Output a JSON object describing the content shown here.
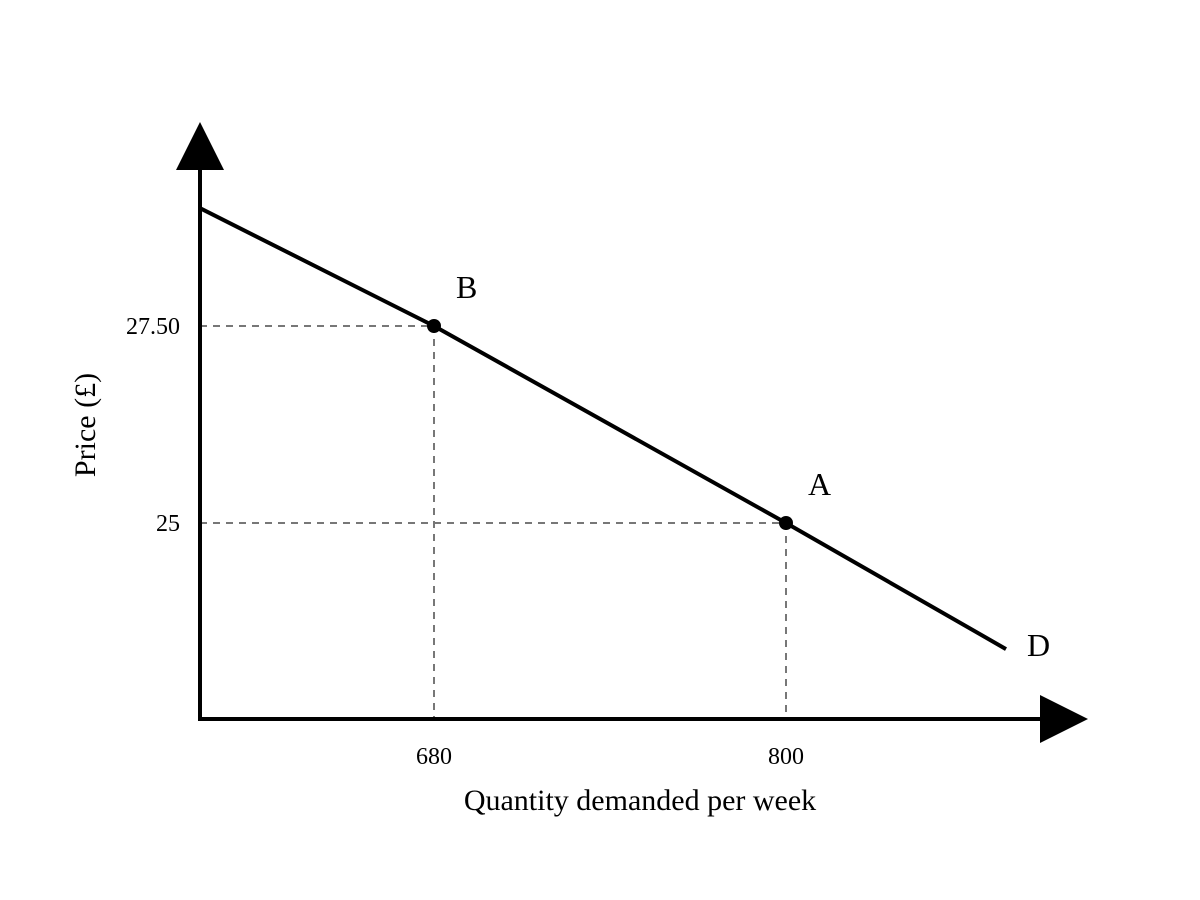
{
  "chart_data": {
    "type": "line",
    "title": "",
    "xlabel": "Quantity demanded per week",
    "ylabel": "Price (£)",
    "x_ticks": [
      {
        "value": 680,
        "label": "680"
      },
      {
        "value": 800,
        "label": "800"
      }
    ],
    "y_ticks": [
      {
        "value": 25,
        "label": "25"
      },
      {
        "value": 27.5,
        "label": "27.50"
      }
    ],
    "series": [
      {
        "name": "D",
        "color": "#000000",
        "points": [
          {
            "x": 600,
            "y": 29.0
          },
          {
            "x": 680,
            "y": 27.5
          },
          {
            "x": 800,
            "y": 25
          },
          {
            "x": 875,
            "y": 23.4
          }
        ]
      }
    ],
    "points": [
      {
        "label": "B",
        "x": 680,
        "y": 27.5
      },
      {
        "label": "A",
        "x": 800,
        "y": 25
      }
    ],
    "curve_label": "D",
    "guide_lines": "dashed",
    "guide_color": "#777777",
    "axis_color": "#000000",
    "grid": false,
    "legend": "none"
  }
}
